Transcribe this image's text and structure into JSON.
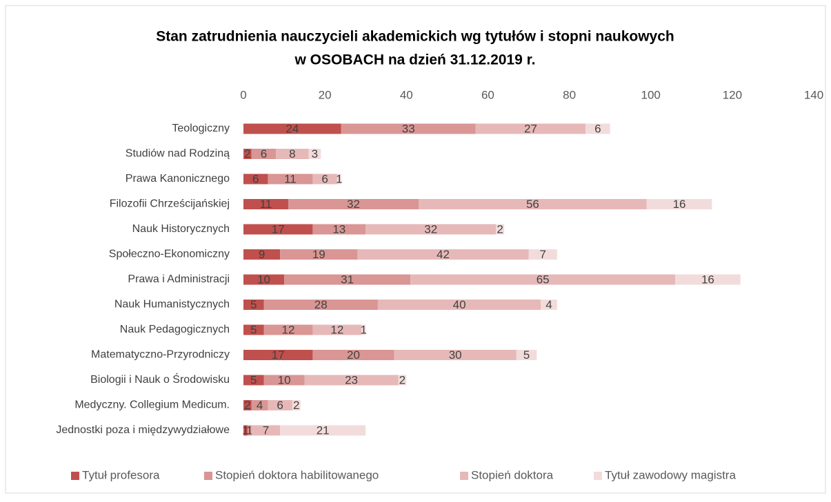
{
  "chart_data": {
    "type": "stacked_bar_horizontal",
    "title": [
      "Stan zatrudnienia nauczycieli akademickich wg tytułów i stopni naukowych",
      "w OSOBACH na dzień 31.12.2019 r."
    ],
    "categories": [
      "Teologiczny",
      "Studiów nad Rodziną",
      "Prawa Kanonicznego",
      "Filozofii Chrześcijańskiej",
      "Nauk Historycznych",
      "Społeczno-Ekonomiczny",
      "Prawa i Administracji",
      "Nauk Humanistycznych",
      "Nauk Pedagogicznych",
      "Matematyczno-Przyrodniczy",
      "Biologii i Nauk o Środowisku",
      "Medyczny. Collegium Medicum.",
      "Jednostki poza i międzywydziałowe"
    ],
    "series": [
      {
        "name": "Tytuł profesora",
        "color": "#c0504d",
        "values": [
          24,
          2,
          6,
          11,
          17,
          9,
          10,
          5,
          5,
          17,
          5,
          2,
          1
        ]
      },
      {
        "name": "Stopień doktora habilitowanego",
        "color": "#d99694",
        "values": [
          33,
          6,
          11,
          32,
          13,
          19,
          31,
          28,
          12,
          20,
          10,
          4,
          1
        ]
      },
      {
        "name": "Stopień doktora",
        "color": "#e6b9b8",
        "values": [
          27,
          8,
          6,
          56,
          32,
          42,
          65,
          40,
          12,
          30,
          23,
          6,
          7
        ]
      },
      {
        "name": "Tytuł zawodowy magistra",
        "color": "#f2dcdb",
        "values": [
          6,
          3,
          1,
          16,
          2,
          7,
          16,
          4,
          1,
          5,
          2,
          2,
          21
        ]
      }
    ],
    "xlim": [
      0,
      140
    ],
    "xticks": [
      0,
      20,
      40,
      60,
      80,
      100,
      120,
      140
    ],
    "legend": "bottom"
  }
}
